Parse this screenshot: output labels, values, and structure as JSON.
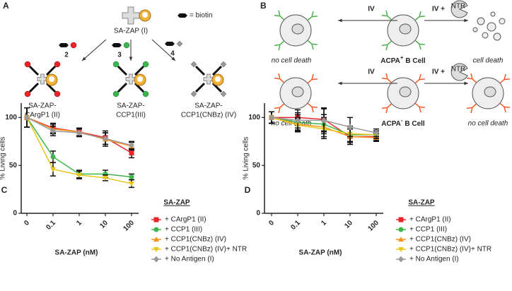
{
  "panels": {
    "A": {
      "label": "A",
      "reagent": "SA-ZAP (I)",
      "biotin": "= biotin",
      "steps": [
        "2",
        "3",
        "4"
      ],
      "products": [
        [
          "SA-ZAP-",
          "CArgP1 (II)"
        ],
        [
          "SA-ZAP-",
          "CCP1(III)"
        ],
        [
          "SA-ZAP-",
          "CCP1(CNBz) (IV)"
        ]
      ]
    },
    "B": {
      "label": "B",
      "rows": [
        {
          "left_arrow": "IV",
          "right_arrow": "IV +",
          "enzyme": "NTR",
          "left_outcome": "no cell death",
          "cell": {
            "main": "ACPA",
            "sup": "+",
            "rest": " B Cell"
          },
          "right_outcome": "cell death"
        },
        {
          "left_arrow": "IV",
          "right_arrow": "IV +",
          "enzyme": "NTR",
          "left_outcome": "no cell death",
          "cell": {
            "main": "ACPA",
            "sup": "-",
            "rest": " B Cell"
          },
          "right_outcome": "no cell death"
        }
      ]
    }
  },
  "chart_data": [
    {
      "type": "line",
      "panel_label": "C",
      "x_label": "SA-ZAP (nM)",
      "y_label": "% Living cells",
      "legend_title": "SA-ZAP",
      "categories": [
        "0",
        "0.1",
        "1",
        "10",
        "100"
      ],
      "ylim": [
        0,
        115
      ],
      "yticks": [
        0,
        50,
        100
      ],
      "series": [
        {
          "name": "+ CArgP1 (II)",
          "color": "#e8262a",
          "marker": "square",
          "values": [
            100,
            89,
            85,
            79,
            63
          ],
          "errors": [
            10,
            5,
            4,
            7,
            5
          ]
        },
        {
          "name": "+ CCP1 (III)",
          "color": "#3cb54a",
          "marker": "circle",
          "values": [
            100,
            59,
            41,
            41,
            38
          ],
          "errors": [
            10,
            6,
            4,
            4,
            3
          ]
        },
        {
          "name": "+ CCP1(CNBz) (IV)",
          "color": "#f7941d",
          "marker": "triangle",
          "values": [
            100,
            88,
            85,
            77,
            70
          ],
          "errors": [
            10,
            5,
            4,
            7,
            4
          ]
        },
        {
          "name": "+ CCP1(CNBz) (IV)+ NTR",
          "color": "#e8c51c",
          "marker": "triangle-down",
          "values": [
            100,
            46,
            40,
            37,
            31
          ],
          "errors": [
            10,
            7,
            4,
            3,
            4
          ]
        },
        {
          "name": "+ No Antigen (I)",
          "color": "#999999",
          "marker": "diamond",
          "values": [
            100,
            86,
            84,
            78,
            71
          ],
          "errors": [
            10,
            5,
            4,
            6,
            4
          ]
        }
      ]
    },
    {
      "type": "line",
      "panel_label": "D",
      "x_label": "SA-ZAP (nM)",
      "y_label": "% Living cells",
      "legend_title": "SA-ZAP",
      "categories": [
        "0",
        "0.1",
        "1",
        "10",
        "100"
      ],
      "ylim": [
        0,
        115
      ],
      "yticks": [
        0,
        50,
        100
      ],
      "series": [
        {
          "name": "+ CArgP1 (II)",
          "color": "#e8262a",
          "marker": "square",
          "values": [
            100,
            100,
            98,
            80,
            80
          ],
          "errors": [
            6,
            8,
            12,
            8,
            4
          ]
        },
        {
          "name": "+ CCP1 (III)",
          "color": "#3cb54a",
          "marker": "circle",
          "values": [
            100,
            95,
            93,
            82,
            82
          ],
          "errors": [
            6,
            8,
            10,
            8,
            4
          ]
        },
        {
          "name": "+ CCP1(CNBz) (IV)",
          "color": "#f7941d",
          "marker": "triangle",
          "values": [
            100,
            93,
            90,
            80,
            79
          ],
          "errors": [
            6,
            7,
            10,
            8,
            4
          ]
        },
        {
          "name": "+ CCP1(CNBz) (IV)+ NTR",
          "color": "#e8c51c",
          "marker": "triangle-down",
          "values": [
            100,
            92,
            88,
            83,
            82
          ],
          "errors": [
            6,
            7,
            10,
            8,
            4
          ]
        },
        {
          "name": "+ No Antigen (I)",
          "color": "#999999",
          "marker": "diamond",
          "values": [
            100,
            97,
            97,
            90,
            84
          ],
          "errors": [
            6,
            8,
            12,
            10,
            4
          ]
        }
      ]
    }
  ]
}
